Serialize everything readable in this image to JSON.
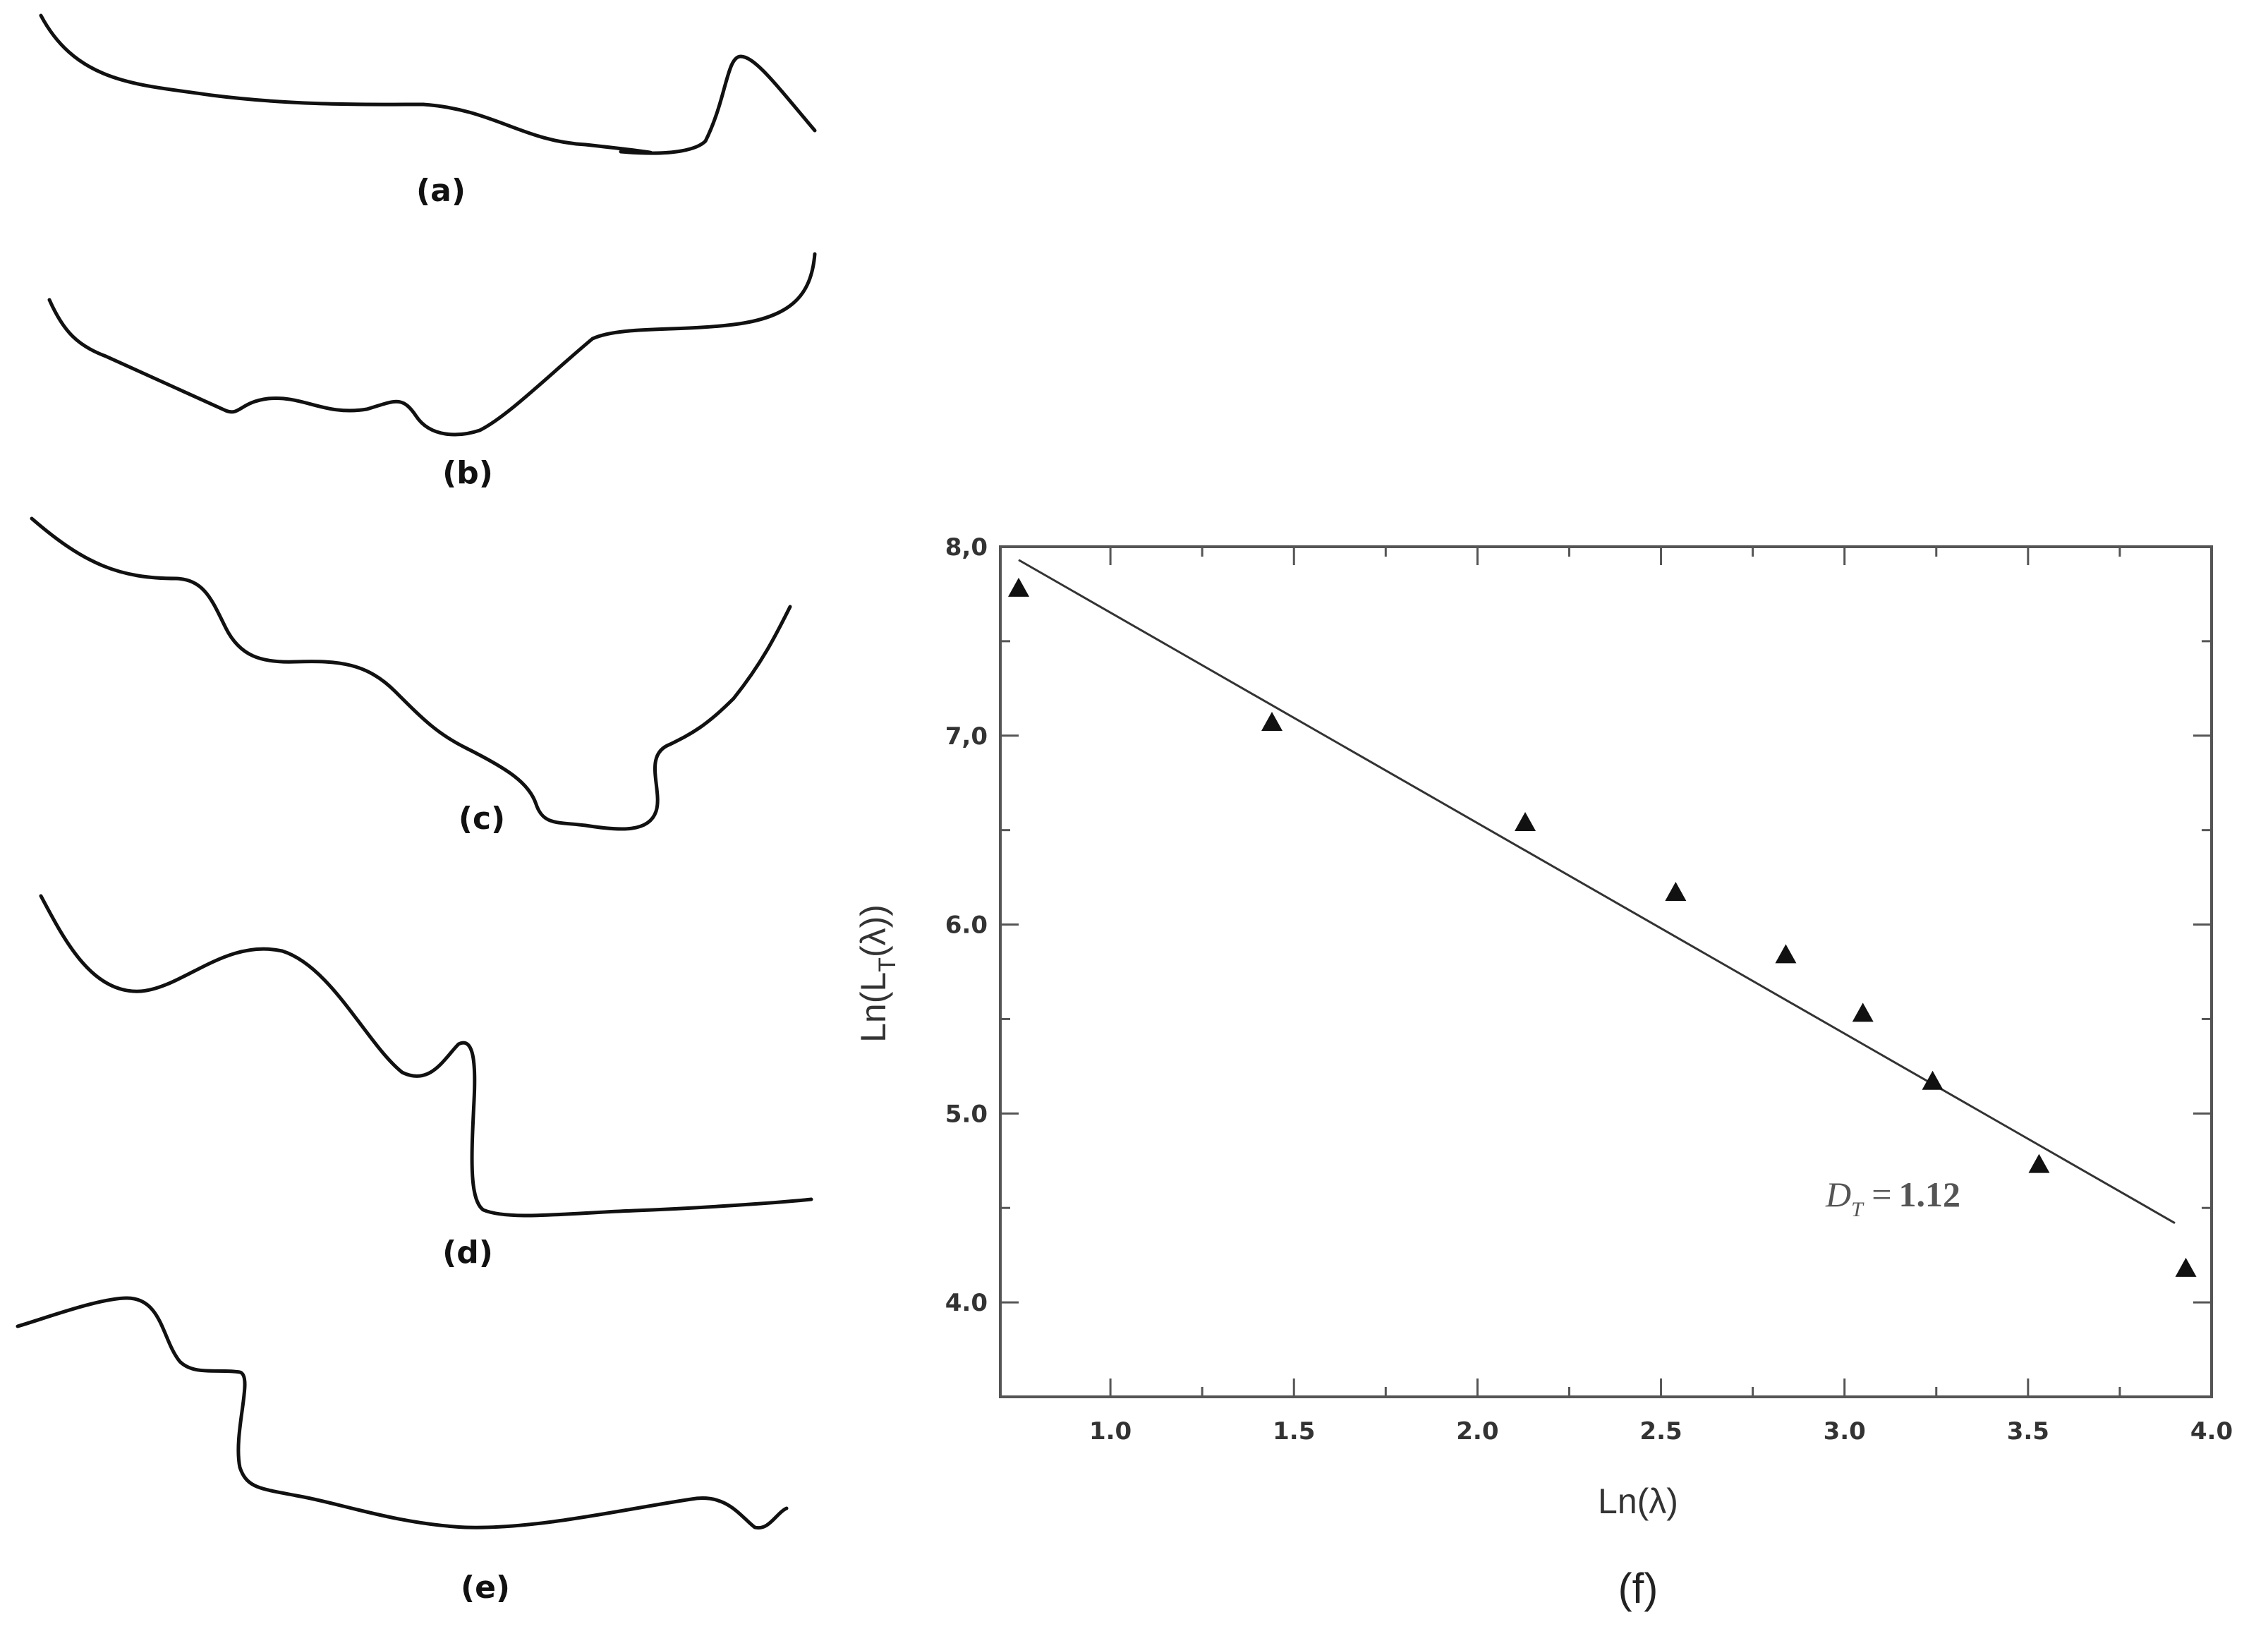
{
  "profiles": {
    "a": {
      "label": "(a)"
    },
    "b": {
      "label": "(b)"
    },
    "c": {
      "label": "(c)"
    },
    "d": {
      "label": "(d)"
    },
    "e": {
      "label": "(e)"
    }
  },
  "chart_data": {
    "type": "scatter",
    "panel_label": "(f)",
    "xlabel": "Ln(λ)",
    "ylabel_main": "Ln(L",
    "ylabel_sub": "T",
    "ylabel_tail": "(λ))",
    "xlim": [
      0.7,
      4.0
    ],
    "ylim": [
      3.5,
      8.0
    ],
    "x_ticks": [
      {
        "value": 1.0,
        "label": "1.0"
      },
      {
        "value": 1.5,
        "label": "1.5"
      },
      {
        "value": 2.0,
        "label": "2.0"
      },
      {
        "value": 2.5,
        "label": "2.5"
      },
      {
        "value": 3.0,
        "label": "3.0"
      },
      {
        "value": 3.5,
        "label": "3.5"
      },
      {
        "value": 4.0,
        "label": "4.0"
      }
    ],
    "y_ticks": [
      {
        "value": 4.0,
        "label": "4.0"
      },
      {
        "value": 5.0,
        "label": "5.0"
      },
      {
        "value": 6.0,
        "label": "6.0"
      },
      {
        "value": 7.0,
        "label": "7,0"
      },
      {
        "value": 8.0,
        "label": "8,0"
      }
    ],
    "marker": "triangle",
    "color": "#111111",
    "points": [
      {
        "x": 0.75,
        "y": 7.78
      },
      {
        "x": 1.44,
        "y": 7.07
      },
      {
        "x": 2.13,
        "y": 6.54
      },
      {
        "x": 2.54,
        "y": 6.17
      },
      {
        "x": 2.84,
        "y": 5.84
      },
      {
        "x": 3.05,
        "y": 5.53
      },
      {
        "x": 3.24,
        "y": 5.17
      },
      {
        "x": 3.53,
        "y": 4.73
      },
      {
        "x": 3.93,
        "y": 4.18
      }
    ],
    "fit_line": {
      "x": [
        0.75,
        3.9
      ],
      "y": [
        7.93,
        4.42
      ]
    },
    "annotation": {
      "var": "D",
      "sub": "T",
      "eq": " =",
      "value": "1.12"
    }
  }
}
